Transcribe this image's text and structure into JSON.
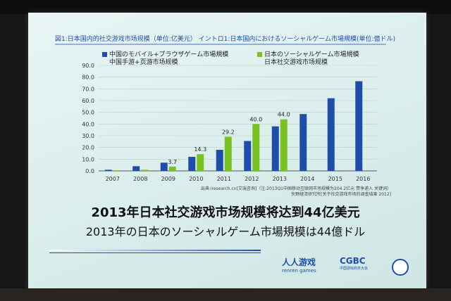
{
  "slide": {
    "chart_title": "図1:日本国内的社交游戏市场规模（单位:亿美元）  イントロ1:日本国内におけるソーシャルゲーム市場規模(単位:億ドル)",
    "legend_1_ja": "中国のモバイル+ブラウザゲーム市場規模",
    "legend_1_zh": "中国手游+页游市场规模",
    "legend_2_ja": "日本のソーシャルゲーム市場規模",
    "legend_2_zh": "日本社交游戏市场规模",
    "source_line_1": "出典:iresearch.cn[艾瑞咨询]（注:2013Q1中国移动互联网市场规模为204.2亿元 赞争递入 关键词）",
    "source_line_2": "矢野経済研究所[关于社交游戏市场的调查结果 2012]",
    "headline_zh": "2013年日本社交游戏市场规模将达到44亿美元",
    "headline_ja": "2013年の日本のソーシャルゲーム市場規模は44億ドル",
    "logo_renren": "人人游戏",
    "logo_renren_sub": "renren games",
    "logo_cgbc": "CGBC",
    "logo_cgbc_sub": "中国游戏商务大会"
  },
  "colors": {
    "blue": "#1f4ea8",
    "green": "#79c224"
  },
  "chart_data": {
    "type": "bar",
    "categories": [
      "2007",
      "2008",
      "2009",
      "2010",
      "2011",
      "2012",
      "2013",
      "2014",
      "2015",
      "2016"
    ],
    "series": [
      {
        "name": "中国のモバイル+ブラウザゲーム市場規模 / 中国手游+页游市场规模",
        "values": [
          1.0,
          4.0,
          7.0,
          12.0,
          18.0,
          25.5,
          38.0,
          48.5,
          62.0,
          76.5
        ]
      },
      {
        "name": "日本のソーシャルゲーム市場規模 / 日本社交游戏市场规模",
        "values": [
          0.5,
          1.0,
          3.7,
          14.3,
          29.2,
          40.0,
          44.0,
          null,
          null,
          null
        ]
      }
    ],
    "data_labels": {
      "2009": "3.7",
      "2010": "14.3",
      "2011": "29.2",
      "2012": "40.0",
      "2013": "44.0"
    },
    "yticks": [
      "0.0",
      "10.0",
      "20.0",
      "30.0",
      "40.0",
      "50.0",
      "60.0",
      "70.0",
      "80.0",
      "90.0"
    ],
    "ylim": [
      0,
      90
    ],
    "grid": true,
    "legend_position": "top"
  }
}
